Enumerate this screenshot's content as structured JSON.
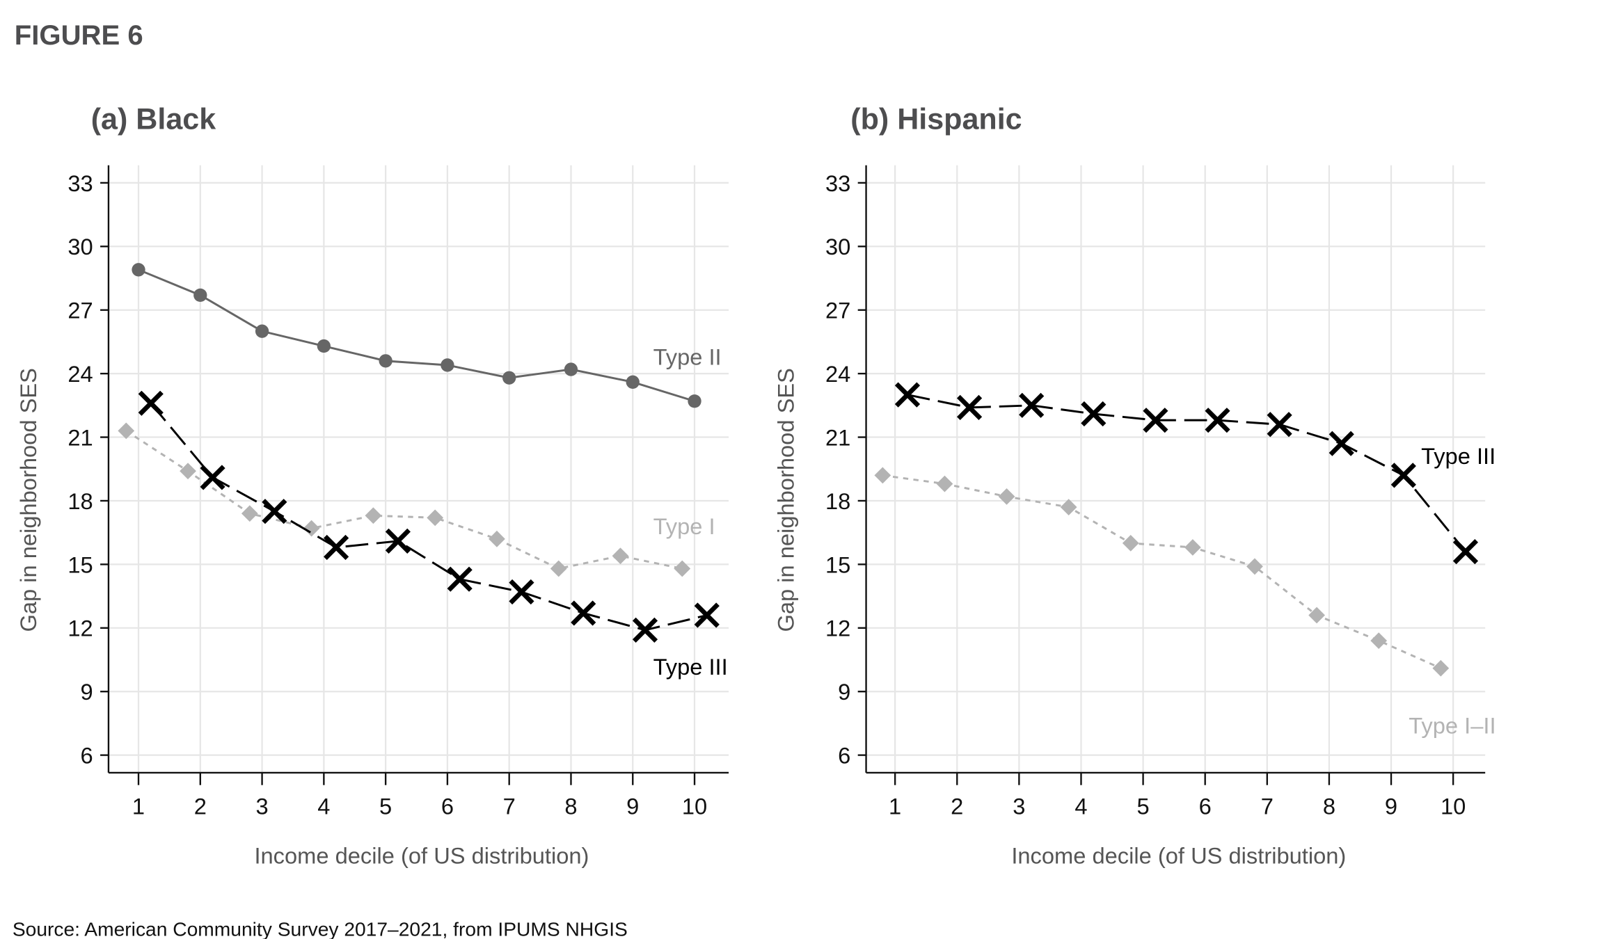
{
  "figure_title": "FIGURE 6",
  "source": "Source: American Community Survey 2017–2021, from IPUMS NHGIS",
  "colors": {
    "type_i": "#b3b3b3",
    "type_ii": "#666666",
    "type_iii": "#000000",
    "grid": "#e6e6e6",
    "title": "#4d4d4f"
  },
  "chart_data": [
    {
      "type": "line",
      "title": "(a) Black",
      "xlabel": "Income decile (of US distribution)",
      "ylabel": "Gap in neighborhood SES",
      "x": [
        1,
        2,
        3,
        4,
        5,
        6,
        7,
        8,
        9,
        10
      ],
      "x_ticks": [
        "1",
        "2",
        "3",
        "4",
        "5",
        "6",
        "7",
        "8",
        "9",
        "10"
      ],
      "y_ticks": [
        "6",
        "9",
        "12",
        "15",
        "18",
        "21",
        "24",
        "27",
        "30",
        "33"
      ],
      "ylim": [
        5.2,
        33.8
      ],
      "grid": true,
      "series": [
        {
          "name": "Type II",
          "label": "Type II",
          "marker": "circle",
          "line": "solid",
          "color": "#666666",
          "values": [
            28.9,
            27.7,
            26.0,
            25.3,
            24.6,
            24.4,
            23.8,
            24.2,
            23.6,
            22.7
          ]
        },
        {
          "name": "Type I",
          "label": "Type I",
          "marker": "diamond",
          "line": "dotted",
          "color": "#b3b3b3",
          "values": [
            21.3,
            19.4,
            17.4,
            16.7,
            17.3,
            17.2,
            16.2,
            14.8,
            15.4,
            14.8
          ]
        },
        {
          "name": "Type III",
          "label": "Type III",
          "marker": "x",
          "line": "dashed",
          "color": "#000000",
          "values": [
            22.6,
            19.1,
            17.5,
            15.8,
            16.1,
            14.3,
            13.7,
            12.7,
            11.9,
            12.6
          ]
        }
      ]
    },
    {
      "type": "line",
      "title": "(b) Hispanic",
      "xlabel": "Income decile (of US distribution)",
      "ylabel": "Gap in neighborhood SES",
      "x": [
        1,
        2,
        3,
        4,
        5,
        6,
        7,
        8,
        9,
        10
      ],
      "x_ticks": [
        "1",
        "2",
        "3",
        "4",
        "5",
        "6",
        "7",
        "8",
        "9",
        "10"
      ],
      "y_ticks": [
        "6",
        "9",
        "12",
        "15",
        "18",
        "21",
        "24",
        "27",
        "30",
        "33"
      ],
      "ylim": [
        5.2,
        33.8
      ],
      "grid": true,
      "series": [
        {
          "name": "Type III",
          "label": "Type III",
          "marker": "x",
          "line": "dashed",
          "color": "#000000",
          "values": [
            23.0,
            22.4,
            22.5,
            22.1,
            21.8,
            21.8,
            21.6,
            20.7,
            19.2,
            15.6
          ]
        },
        {
          "name": "Type I–II",
          "label": "Type I–II",
          "marker": "diamond",
          "line": "dotted",
          "color": "#b3b3b3",
          "values": [
            19.2,
            18.8,
            18.2,
            17.7,
            16.0,
            15.8,
            14.9,
            12.6,
            11.4,
            10.1
          ]
        }
      ]
    }
  ]
}
